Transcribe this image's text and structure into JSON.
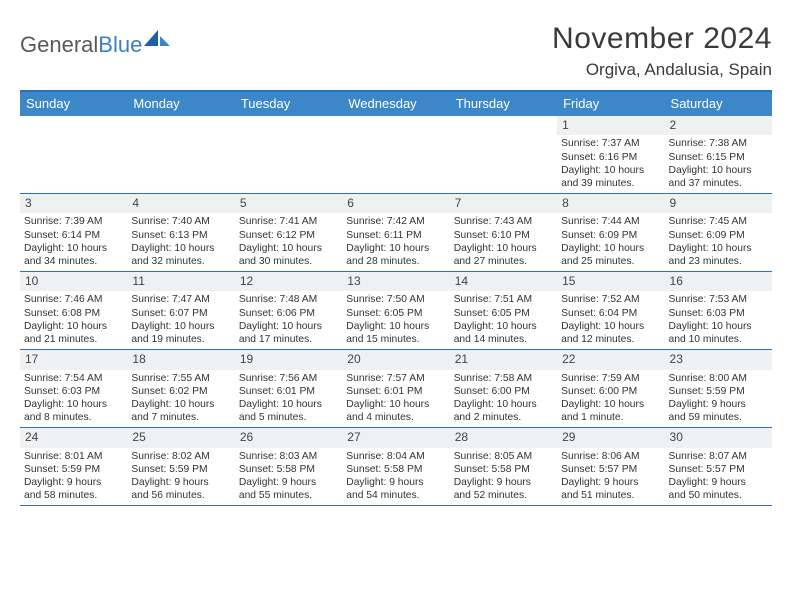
{
  "logo": {
    "part1": "General",
    "part2": "Blue"
  },
  "header": {
    "title": "November 2024",
    "location": "Orgiva, Andalusia, Spain"
  },
  "colors": {
    "header_bg": "#3b87c8",
    "border": "#2a71b8",
    "daynum_bg": "#eef0f2",
    "text": "#333333",
    "logo_gray": "#5a5a5a",
    "logo_blue": "#3b7fc4"
  },
  "daysOfWeek": [
    "Sunday",
    "Monday",
    "Tuesday",
    "Wednesday",
    "Thursday",
    "Friday",
    "Saturday"
  ],
  "weeks": [
    [
      {
        "empty": true
      },
      {
        "empty": true
      },
      {
        "empty": true
      },
      {
        "empty": true
      },
      {
        "empty": true
      },
      {
        "day": "1",
        "sunrise": "Sunrise: 7:37 AM",
        "sunset": "Sunset: 6:16 PM",
        "daylight1": "Daylight: 10 hours",
        "daylight2": "and 39 minutes."
      },
      {
        "day": "2",
        "sunrise": "Sunrise: 7:38 AM",
        "sunset": "Sunset: 6:15 PM",
        "daylight1": "Daylight: 10 hours",
        "daylight2": "and 37 minutes."
      }
    ],
    [
      {
        "day": "3",
        "sunrise": "Sunrise: 7:39 AM",
        "sunset": "Sunset: 6:14 PM",
        "daylight1": "Daylight: 10 hours",
        "daylight2": "and 34 minutes."
      },
      {
        "day": "4",
        "sunrise": "Sunrise: 7:40 AM",
        "sunset": "Sunset: 6:13 PM",
        "daylight1": "Daylight: 10 hours",
        "daylight2": "and 32 minutes."
      },
      {
        "day": "5",
        "sunrise": "Sunrise: 7:41 AM",
        "sunset": "Sunset: 6:12 PM",
        "daylight1": "Daylight: 10 hours",
        "daylight2": "and 30 minutes."
      },
      {
        "day": "6",
        "sunrise": "Sunrise: 7:42 AM",
        "sunset": "Sunset: 6:11 PM",
        "daylight1": "Daylight: 10 hours",
        "daylight2": "and 28 minutes."
      },
      {
        "day": "7",
        "sunrise": "Sunrise: 7:43 AM",
        "sunset": "Sunset: 6:10 PM",
        "daylight1": "Daylight: 10 hours",
        "daylight2": "and 27 minutes."
      },
      {
        "day": "8",
        "sunrise": "Sunrise: 7:44 AM",
        "sunset": "Sunset: 6:09 PM",
        "daylight1": "Daylight: 10 hours",
        "daylight2": "and 25 minutes."
      },
      {
        "day": "9",
        "sunrise": "Sunrise: 7:45 AM",
        "sunset": "Sunset: 6:09 PM",
        "daylight1": "Daylight: 10 hours",
        "daylight2": "and 23 minutes."
      }
    ],
    [
      {
        "day": "10",
        "sunrise": "Sunrise: 7:46 AM",
        "sunset": "Sunset: 6:08 PM",
        "daylight1": "Daylight: 10 hours",
        "daylight2": "and 21 minutes."
      },
      {
        "day": "11",
        "sunrise": "Sunrise: 7:47 AM",
        "sunset": "Sunset: 6:07 PM",
        "daylight1": "Daylight: 10 hours",
        "daylight2": "and 19 minutes."
      },
      {
        "day": "12",
        "sunrise": "Sunrise: 7:48 AM",
        "sunset": "Sunset: 6:06 PM",
        "daylight1": "Daylight: 10 hours",
        "daylight2": "and 17 minutes."
      },
      {
        "day": "13",
        "sunrise": "Sunrise: 7:50 AM",
        "sunset": "Sunset: 6:05 PM",
        "daylight1": "Daylight: 10 hours",
        "daylight2": "and 15 minutes."
      },
      {
        "day": "14",
        "sunrise": "Sunrise: 7:51 AM",
        "sunset": "Sunset: 6:05 PM",
        "daylight1": "Daylight: 10 hours",
        "daylight2": "and 14 minutes."
      },
      {
        "day": "15",
        "sunrise": "Sunrise: 7:52 AM",
        "sunset": "Sunset: 6:04 PM",
        "daylight1": "Daylight: 10 hours",
        "daylight2": "and 12 minutes."
      },
      {
        "day": "16",
        "sunrise": "Sunrise: 7:53 AM",
        "sunset": "Sunset: 6:03 PM",
        "daylight1": "Daylight: 10 hours",
        "daylight2": "and 10 minutes."
      }
    ],
    [
      {
        "day": "17",
        "sunrise": "Sunrise: 7:54 AM",
        "sunset": "Sunset: 6:03 PM",
        "daylight1": "Daylight: 10 hours",
        "daylight2": "and 8 minutes."
      },
      {
        "day": "18",
        "sunrise": "Sunrise: 7:55 AM",
        "sunset": "Sunset: 6:02 PM",
        "daylight1": "Daylight: 10 hours",
        "daylight2": "and 7 minutes."
      },
      {
        "day": "19",
        "sunrise": "Sunrise: 7:56 AM",
        "sunset": "Sunset: 6:01 PM",
        "daylight1": "Daylight: 10 hours",
        "daylight2": "and 5 minutes."
      },
      {
        "day": "20",
        "sunrise": "Sunrise: 7:57 AM",
        "sunset": "Sunset: 6:01 PM",
        "daylight1": "Daylight: 10 hours",
        "daylight2": "and 4 minutes."
      },
      {
        "day": "21",
        "sunrise": "Sunrise: 7:58 AM",
        "sunset": "Sunset: 6:00 PM",
        "daylight1": "Daylight: 10 hours",
        "daylight2": "and 2 minutes."
      },
      {
        "day": "22",
        "sunrise": "Sunrise: 7:59 AM",
        "sunset": "Sunset: 6:00 PM",
        "daylight1": "Daylight: 10 hours",
        "daylight2": "and 1 minute."
      },
      {
        "day": "23",
        "sunrise": "Sunrise: 8:00 AM",
        "sunset": "Sunset: 5:59 PM",
        "daylight1": "Daylight: 9 hours",
        "daylight2": "and 59 minutes."
      }
    ],
    [
      {
        "day": "24",
        "sunrise": "Sunrise: 8:01 AM",
        "sunset": "Sunset: 5:59 PM",
        "daylight1": "Daylight: 9 hours",
        "daylight2": "and 58 minutes."
      },
      {
        "day": "25",
        "sunrise": "Sunrise: 8:02 AM",
        "sunset": "Sunset: 5:59 PM",
        "daylight1": "Daylight: 9 hours",
        "daylight2": "and 56 minutes."
      },
      {
        "day": "26",
        "sunrise": "Sunrise: 8:03 AM",
        "sunset": "Sunset: 5:58 PM",
        "daylight1": "Daylight: 9 hours",
        "daylight2": "and 55 minutes."
      },
      {
        "day": "27",
        "sunrise": "Sunrise: 8:04 AM",
        "sunset": "Sunset: 5:58 PM",
        "daylight1": "Daylight: 9 hours",
        "daylight2": "and 54 minutes."
      },
      {
        "day": "28",
        "sunrise": "Sunrise: 8:05 AM",
        "sunset": "Sunset: 5:58 PM",
        "daylight1": "Daylight: 9 hours",
        "daylight2": "and 52 minutes."
      },
      {
        "day": "29",
        "sunrise": "Sunrise: 8:06 AM",
        "sunset": "Sunset: 5:57 PM",
        "daylight1": "Daylight: 9 hours",
        "daylight2": "and 51 minutes."
      },
      {
        "day": "30",
        "sunrise": "Sunrise: 8:07 AM",
        "sunset": "Sunset: 5:57 PM",
        "daylight1": "Daylight: 9 hours",
        "daylight2": "and 50 minutes."
      }
    ]
  ]
}
